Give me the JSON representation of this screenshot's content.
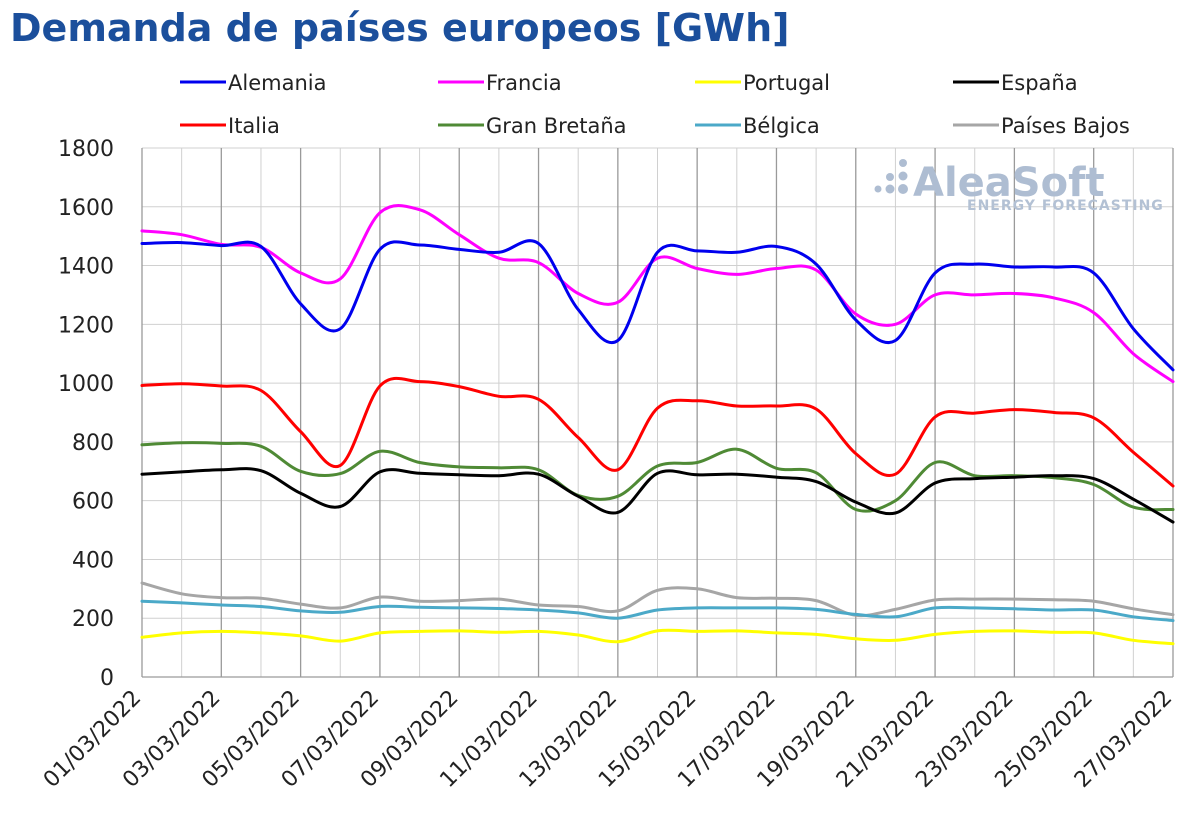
{
  "watermark": {
    "name": "AleaSoft",
    "tagline": "ENERGY FORECASTING"
  },
  "chart_data": {
    "type": "line",
    "title": "Demanda de países europeos [GWh]",
    "xlabel": "",
    "ylabel": "",
    "ylim": [
      0,
      1800
    ],
    "yticks": [
      0,
      200,
      400,
      600,
      800,
      1000,
      1200,
      1400,
      1600,
      1800
    ],
    "xtick_labels": [
      "01/03/2022",
      "03/03/2022",
      "05/03/2022",
      "07/03/2022",
      "09/03/2022",
      "11/03/2022",
      "13/03/2022",
      "15/03/2022",
      "17/03/2022",
      "19/03/2022",
      "21/03/2022",
      "23/03/2022",
      "25/03/2022",
      "27/03/2022"
    ],
    "grid": true,
    "legend_position": "top",
    "x": [
      "01/03/2022",
      "02/03/2022",
      "03/03/2022",
      "04/03/2022",
      "05/03/2022",
      "06/03/2022",
      "07/03/2022",
      "08/03/2022",
      "09/03/2022",
      "10/03/2022",
      "11/03/2022",
      "12/03/2022",
      "13/03/2022",
      "14/03/2022",
      "15/03/2022",
      "16/03/2022",
      "17/03/2022",
      "18/03/2022",
      "19/03/2022",
      "20/03/2022",
      "21/03/2022",
      "22/03/2022",
      "23/03/2022",
      "24/03/2022",
      "25/03/2022",
      "26/03/2022",
      "27/03/2022"
    ],
    "series": [
      {
        "name": "Alemania",
        "color": "#0000ee",
        "values": [
          1475,
          1478,
          1468,
          1465,
          1270,
          1185,
          1455,
          1470,
          1455,
          1445,
          1475,
          1250,
          1145,
          1445,
          1450,
          1445,
          1465,
          1405,
          1215,
          1145,
          1375,
          1405,
          1395,
          1395,
          1375,
          1185,
          1045
        ]
      },
      {
        "name": "Francia",
        "color": "#ff00ff",
        "values": [
          1518,
          1505,
          1472,
          1462,
          1375,
          1355,
          1580,
          1590,
          1505,
          1425,
          1410,
          1305,
          1275,
          1425,
          1390,
          1370,
          1390,
          1385,
          1235,
          1200,
          1300,
          1300,
          1305,
          1290,
          1240,
          1100,
          1005
        ]
      },
      {
        "name": "Portugal",
        "color": "#ffff00",
        "values": [
          135,
          150,
          155,
          150,
          140,
          122,
          150,
          155,
          157,
          152,
          155,
          143,
          120,
          157,
          155,
          157,
          150,
          145,
          130,
          125,
          145,
          155,
          157,
          152,
          150,
          125,
          113
        ]
      },
      {
        "name": "España",
        "color": "#000000",
        "values": [
          690,
          698,
          705,
          702,
          625,
          580,
          698,
          693,
          688,
          685,
          690,
          615,
          560,
          693,
          688,
          690,
          680,
          665,
          595,
          558,
          660,
          675,
          680,
          685,
          675,
          605,
          527
        ]
      },
      {
        "name": "Italia",
        "color": "#ff0000",
        "values": [
          992,
          998,
          990,
          975,
          835,
          720,
          990,
          1005,
          988,
          955,
          945,
          815,
          705,
          915,
          940,
          922,
          922,
          912,
          760,
          690,
          885,
          898,
          910,
          900,
          882,
          765,
          650
        ]
      },
      {
        "name": "Gran Bretaña",
        "color": "#4f8a35",
        "values": [
          790,
          797,
          795,
          785,
          700,
          692,
          768,
          730,
          715,
          712,
          705,
          618,
          615,
          718,
          730,
          775,
          710,
          695,
          570,
          600,
          730,
          685,
          685,
          678,
          655,
          578,
          570
        ]
      },
      {
        "name": "Bélgica",
        "color": "#4ba9c8",
        "values": [
          258,
          252,
          245,
          240,
          225,
          220,
          240,
          237,
          235,
          233,
          228,
          218,
          200,
          228,
          235,
          235,
          235,
          230,
          213,
          205,
          235,
          235,
          232,
          228,
          228,
          205,
          192
        ]
      },
      {
        "name": "Países Bajos",
        "color": "#a6a6a6",
        "values": [
          320,
          283,
          270,
          268,
          248,
          235,
          272,
          258,
          260,
          265,
          245,
          240,
          225,
          295,
          300,
          270,
          268,
          260,
          210,
          230,
          262,
          265,
          265,
          263,
          258,
          232,
          212
        ]
      }
    ]
  }
}
